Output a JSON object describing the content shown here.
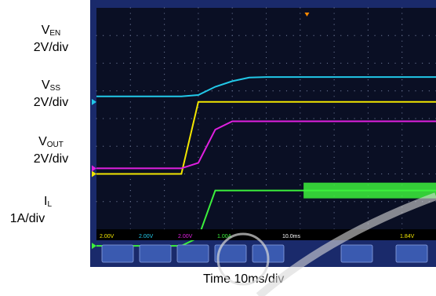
{
  "labels": {
    "ven_main": "V",
    "ven_sub": "EN",
    "ven_scale": "2V/div",
    "vss_main": "V",
    "vss_sub": "SS",
    "vss_scale": "2V/div",
    "vout_main": "V",
    "vout_sub": "OUT",
    "vout_scale": "2V/div",
    "il_main": "I",
    "il_sub": "L",
    "il_scale": "1A/div",
    "time": "Time  10ms/div"
  },
  "colors": {
    "screen": "#0a0f24",
    "grid": "#6f7a9a",
    "bezel": "#1a2a6b",
    "ven": "#f2e600",
    "vss": "#22c8e8",
    "vout": "#e020e0",
    "il": "#3cf03c",
    "softkey": "#3a5ab0",
    "softkey_text": "#ffffff",
    "status_bg": "#000000"
  },
  "scope_readouts": {
    "ch1": "2.00V",
    "ch2": "2.00V",
    "ch3": "2.00V",
    "ch4": "1.00A",
    "timebase": "10.0ms",
    "trigger_level": "1.84V"
  },
  "softkeys": [
    "",
    "",
    "",
    "",
    "",
    "",
    ""
  ],
  "chart_data": {
    "type": "line",
    "title": "",
    "xlabel": "Time  10ms/div",
    "ylabel": "",
    "x_divisions": 10,
    "y_divisions": 8,
    "x": [
      0,
      0.5,
      1,
      1.5,
      2,
      2.5,
      3,
      3.5,
      4,
      4.5,
      5,
      5.5,
      6,
      6.5,
      7,
      7.5,
      8,
      8.5,
      9,
      9.5,
      10
    ],
    "series": [
      {
        "name": "V_EN",
        "unit_per_div": "2V/div",
        "values": [
          0,
          0,
          0,
          0,
          0,
          0,
          2.6,
          2.6,
          2.6,
          2.6,
          2.6,
          2.6,
          2.6,
          2.6,
          2.6,
          2.6,
          2.6,
          2.6,
          2.6,
          2.6,
          2.6
        ]
      },
      {
        "name": "V_SS",
        "unit_per_div": "2V/div",
        "values": [
          0.2,
          0.2,
          0.2,
          0.2,
          0.2,
          0.2,
          0.25,
          0.55,
          0.75,
          0.88,
          0.9,
          0.9,
          0.9,
          0.9,
          0.9,
          0.9,
          0.9,
          0.9,
          0.9,
          0.9,
          0.9
        ]
      },
      {
        "name": "V_OUT",
        "unit_per_div": "2V/div",
        "values": [
          0,
          0,
          0,
          0,
          0,
          0,
          0.2,
          1.4,
          1.7,
          1.7,
          1.7,
          1.7,
          1.7,
          1.7,
          1.7,
          1.7,
          1.7,
          1.7,
          1.7,
          1.7,
          1.7
        ]
      },
      {
        "name": "I_L",
        "unit_per_div": "1A/div",
        "values": [
          0,
          0,
          0,
          0,
          0,
          0,
          0.3,
          2.0,
          2.0,
          2.0,
          2.0,
          2.0,
          2.0,
          2.0,
          2.0,
          2.0,
          2.0,
          2.0,
          2.0,
          2.0,
          2.0
        ]
      }
    ]
  }
}
